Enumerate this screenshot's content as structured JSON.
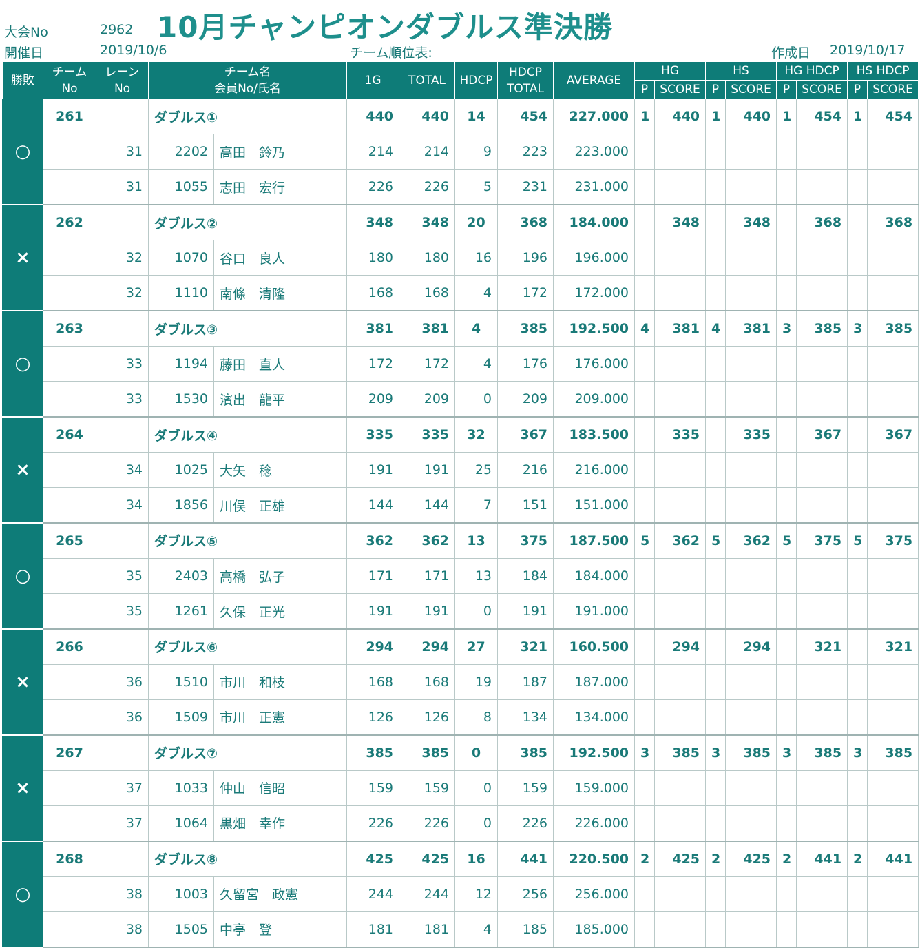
{
  "title": "10月チャンピオンダブルス準決勝",
  "meta": {
    "tournament_label": "大会No",
    "tournament_no": "2962",
    "date_label": "開催日",
    "date": "2019/10/6",
    "ranking_label": "チーム順位表:",
    "created_label": "作成日",
    "created_date": "2019/10/17"
  },
  "headers": {
    "result": "勝敗",
    "team_no_1": "チーム",
    "team_no_2": "No",
    "lane_1": "レーン",
    "lane_2": "No",
    "team_name_1": "チーム名",
    "team_name_2": "会員No/氏名",
    "g1": "1G",
    "total": "TOTAL",
    "hdcp": "HDCP",
    "hdcp_total_1": "HDCP",
    "hdcp_total_2": "TOTAL",
    "average": "AVERAGE",
    "hg": "HG",
    "hs": "HS",
    "hg_hdcp": "HG HDCP",
    "hs_hdcp": "HS HDCP",
    "p": "P",
    "score": "SCORE"
  },
  "teams": [
    {
      "result": "○",
      "no": "261",
      "name": "ダブルス①",
      "g1": "440",
      "total": "440",
      "hdcp": "14",
      "hdcp_total": "454",
      "average": "227.000",
      "hg_p": "1",
      "hg": "440",
      "hs_p": "1",
      "hs": "440",
      "hgh_p": "1",
      "hgh": "454",
      "hsh_p": "1",
      "hsh": "454",
      "members": [
        {
          "lane": "31",
          "member_no": "2202",
          "name": "高田　鈴乃",
          "g1": "214",
          "total": "214",
          "hdcp": "9",
          "hdcp_total": "223",
          "average": "223.000"
        },
        {
          "lane": "31",
          "member_no": "1055",
          "name": "志田　宏行",
          "g1": "226",
          "total": "226",
          "hdcp": "5",
          "hdcp_total": "231",
          "average": "231.000"
        }
      ]
    },
    {
      "result": "×",
      "no": "262",
      "name": "ダブルス②",
      "g1": "348",
      "total": "348",
      "hdcp": "20",
      "hdcp_total": "368",
      "average": "184.000",
      "hg_p": "",
      "hg": "348",
      "hs_p": "",
      "hs": "348",
      "hgh_p": "",
      "hgh": "368",
      "hsh_p": "",
      "hsh": "368",
      "members": [
        {
          "lane": "32",
          "member_no": "1070",
          "name": "谷口　良人",
          "g1": "180",
          "total": "180",
          "hdcp": "16",
          "hdcp_total": "196",
          "average": "196.000"
        },
        {
          "lane": "32",
          "member_no": "1110",
          "name": "南條　清隆",
          "g1": "168",
          "total": "168",
          "hdcp": "4",
          "hdcp_total": "172",
          "average": "172.000"
        }
      ]
    },
    {
      "result": "○",
      "no": "263",
      "name": "ダブルス③",
      "g1": "381",
      "total": "381",
      "hdcp": "4",
      "hdcp_total": "385",
      "average": "192.500",
      "hg_p": "4",
      "hg": "381",
      "hs_p": "4",
      "hs": "381",
      "hgh_p": "3",
      "hgh": "385",
      "hsh_p": "3",
      "hsh": "385",
      "members": [
        {
          "lane": "33",
          "member_no": "1194",
          "name": "藤田　直人",
          "g1": "172",
          "total": "172",
          "hdcp": "4",
          "hdcp_total": "176",
          "average": "176.000"
        },
        {
          "lane": "33",
          "member_no": "1530",
          "name": "濱出　龍平",
          "g1": "209",
          "total": "209",
          "hdcp": "0",
          "hdcp_total": "209",
          "average": "209.000"
        }
      ]
    },
    {
      "result": "×",
      "no": "264",
      "name": "ダブルス④",
      "g1": "335",
      "total": "335",
      "hdcp": "32",
      "hdcp_total": "367",
      "average": "183.500",
      "hg_p": "",
      "hg": "335",
      "hs_p": "",
      "hs": "335",
      "hgh_p": "",
      "hgh": "367",
      "hsh_p": "",
      "hsh": "367",
      "members": [
        {
          "lane": "34",
          "member_no": "1025",
          "name": "大矢　稔",
          "g1": "191",
          "total": "191",
          "hdcp": "25",
          "hdcp_total": "216",
          "average": "216.000"
        },
        {
          "lane": "34",
          "member_no": "1856",
          "name": "川俣　正雄",
          "g1": "144",
          "total": "144",
          "hdcp": "7",
          "hdcp_total": "151",
          "average": "151.000"
        }
      ]
    },
    {
      "result": "○",
      "no": "265",
      "name": "ダブルス⑤",
      "g1": "362",
      "total": "362",
      "hdcp": "13",
      "hdcp_total": "375",
      "average": "187.500",
      "hg_p": "5",
      "hg": "362",
      "hs_p": "5",
      "hs": "362",
      "hgh_p": "5",
      "hgh": "375",
      "hsh_p": "5",
      "hsh": "375",
      "members": [
        {
          "lane": "35",
          "member_no": "2403",
          "name": "高橋　弘子",
          "g1": "171",
          "total": "171",
          "hdcp": "13",
          "hdcp_total": "184",
          "average": "184.000"
        },
        {
          "lane": "35",
          "member_no": "1261",
          "name": "久保　正光",
          "g1": "191",
          "total": "191",
          "hdcp": "0",
          "hdcp_total": "191",
          "average": "191.000"
        }
      ]
    },
    {
      "result": "×",
      "no": "266",
      "name": "ダブルス⑥",
      "g1": "294",
      "total": "294",
      "hdcp": "27",
      "hdcp_total": "321",
      "average": "160.500",
      "hg_p": "",
      "hg": "294",
      "hs_p": "",
      "hs": "294",
      "hgh_p": "",
      "hgh": "321",
      "hsh_p": "",
      "hsh": "321",
      "members": [
        {
          "lane": "36",
          "member_no": "1510",
          "name": "市川　和枝",
          "g1": "168",
          "total": "168",
          "hdcp": "19",
          "hdcp_total": "187",
          "average": "187.000"
        },
        {
          "lane": "36",
          "member_no": "1509",
          "name": "市川　正憲",
          "g1": "126",
          "total": "126",
          "hdcp": "8",
          "hdcp_total": "134",
          "average": "134.000"
        }
      ]
    },
    {
      "result": "×",
      "no": "267",
      "name": "ダブルス⑦",
      "g1": "385",
      "total": "385",
      "hdcp": "0",
      "hdcp_total": "385",
      "average": "192.500",
      "hg_p": "3",
      "hg": "385",
      "hs_p": "3",
      "hs": "385",
      "hgh_p": "3",
      "hgh": "385",
      "hsh_p": "3",
      "hsh": "385",
      "members": [
        {
          "lane": "37",
          "member_no": "1033",
          "name": "仲山　信昭",
          "g1": "159",
          "total": "159",
          "hdcp": "0",
          "hdcp_total": "159",
          "average": "159.000"
        },
        {
          "lane": "37",
          "member_no": "1064",
          "name": "黒畑　幸作",
          "g1": "226",
          "total": "226",
          "hdcp": "0",
          "hdcp_total": "226",
          "average": "226.000"
        }
      ]
    },
    {
      "result": "○",
      "no": "268",
      "name": "ダブルス⑧",
      "g1": "425",
      "total": "425",
      "hdcp": "16",
      "hdcp_total": "441",
      "average": "220.500",
      "hg_p": "2",
      "hg": "425",
      "hs_p": "2",
      "hs": "425",
      "hgh_p": "2",
      "hgh": "441",
      "hsh_p": "2",
      "hsh": "441",
      "members": [
        {
          "lane": "38",
          "member_no": "1003",
          "name": "久留宮　政憲",
          "g1": "244",
          "total": "244",
          "hdcp": "12",
          "hdcp_total": "256",
          "average": "256.000"
        },
        {
          "lane": "38",
          "member_no": "1505",
          "name": "中亭　登",
          "g1": "181",
          "total": "181",
          "hdcp": "4",
          "hdcp_total": "185",
          "average": "185.000"
        }
      ]
    }
  ]
}
